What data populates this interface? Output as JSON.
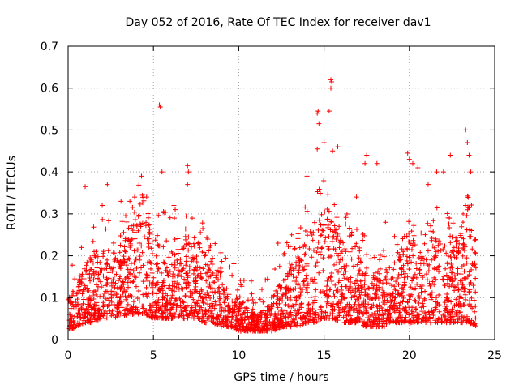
{
  "chart_data": {
    "type": "scatter",
    "title": "Day 052 of 2016, Rate Of TEC Index for receiver dav1",
    "xlabel": "GPS time / hours",
    "ylabel": "ROTI / TECUs",
    "xlim": [
      0,
      25
    ],
    "ylim": [
      0,
      0.7
    ],
    "xticks": [
      "0",
      "5",
      "10",
      "15",
      "20",
      "25"
    ],
    "xtick_values": [
      0,
      5,
      10,
      15,
      20,
      25
    ],
    "yticks": [
      "0",
      "0.1",
      "0.2",
      "0.3",
      "0.4",
      "0.5",
      "0.6",
      "0.7"
    ],
    "ytick_values": [
      0,
      0.1,
      0.2,
      0.3,
      0.4,
      0.5,
      0.6,
      0.7
    ],
    "grid": true,
    "marker": "+",
    "series_color": "#ff0000",
    "data_range_hours": [
      0,
      23.9
    ],
    "envelope": {
      "hours": [
        0,
        0.5,
        1,
        1.5,
        2,
        2.5,
        3,
        3.5,
        4,
        4.5,
        5,
        5.5,
        6,
        6.5,
        7,
        7.5,
        8,
        8.5,
        9,
        9.5,
        10,
        10.5,
        11,
        11.5,
        12,
        12.5,
        13,
        13.5,
        14,
        14.5,
        15,
        15.5,
        16,
        16.5,
        17,
        17.5,
        18,
        18.5,
        19,
        19.5,
        20,
        20.5,
        21,
        21.5,
        22,
        22.5,
        23,
        23.5,
        23.9
      ],
      "typical_max": [
        0.1,
        0.13,
        0.18,
        0.2,
        0.24,
        0.22,
        0.2,
        0.26,
        0.3,
        0.3,
        0.28,
        0.24,
        0.24,
        0.25,
        0.28,
        0.24,
        0.22,
        0.18,
        0.15,
        0.12,
        0.1,
        0.08,
        0.06,
        0.07,
        0.1,
        0.15,
        0.18,
        0.2,
        0.26,
        0.28,
        0.32,
        0.3,
        0.26,
        0.22,
        0.2,
        0.17,
        0.15,
        0.16,
        0.18,
        0.2,
        0.24,
        0.22,
        0.2,
        0.26,
        0.24,
        0.22,
        0.28,
        0.3,
        0.2
      ],
      "typical_min": [
        0.02,
        0.03,
        0.04,
        0.04,
        0.05,
        0.05,
        0.05,
        0.06,
        0.06,
        0.06,
        0.05,
        0.05,
        0.05,
        0.05,
        0.05,
        0.05,
        0.04,
        0.04,
        0.03,
        0.03,
        0.02,
        0.02,
        0.02,
        0.02,
        0.02,
        0.03,
        0.03,
        0.03,
        0.04,
        0.04,
        0.05,
        0.05,
        0.04,
        0.04,
        0.04,
        0.03,
        0.03,
        0.03,
        0.04,
        0.04,
        0.04,
        0.04,
        0.04,
        0.04,
        0.04,
        0.04,
        0.04,
        0.04,
        0.03
      ]
    },
    "notable_points": [
      {
        "x": 1.0,
        "y": 0.365
      },
      {
        "x": 2.3,
        "y": 0.37
      },
      {
        "x": 4.3,
        "y": 0.39
      },
      {
        "x": 5.35,
        "y": 0.56
      },
      {
        "x": 5.4,
        "y": 0.555
      },
      {
        "x": 5.5,
        "y": 0.4
      },
      {
        "x": 7.0,
        "y": 0.415
      },
      {
        "x": 7.05,
        "y": 0.4
      },
      {
        "x": 7.0,
        "y": 0.37
      },
      {
        "x": 14.0,
        "y": 0.39
      },
      {
        "x": 14.6,
        "y": 0.54
      },
      {
        "x": 14.65,
        "y": 0.545
      },
      {
        "x": 14.7,
        "y": 0.515
      },
      {
        "x": 14.6,
        "y": 0.455
      },
      {
        "x": 15.0,
        "y": 0.47
      },
      {
        "x": 15.4,
        "y": 0.62
      },
      {
        "x": 15.45,
        "y": 0.615
      },
      {
        "x": 15.4,
        "y": 0.6
      },
      {
        "x": 15.3,
        "y": 0.545
      },
      {
        "x": 15.5,
        "y": 0.45
      },
      {
        "x": 15.8,
        "y": 0.46
      },
      {
        "x": 17.5,
        "y": 0.44
      },
      {
        "x": 17.4,
        "y": 0.42
      },
      {
        "x": 18.1,
        "y": 0.42
      },
      {
        "x": 19.9,
        "y": 0.445
      },
      {
        "x": 20.0,
        "y": 0.43
      },
      {
        "x": 20.2,
        "y": 0.42
      },
      {
        "x": 20.5,
        "y": 0.41
      },
      {
        "x": 21.6,
        "y": 0.4
      },
      {
        "x": 22.0,
        "y": 0.4
      },
      {
        "x": 22.4,
        "y": 0.44
      },
      {
        "x": 23.3,
        "y": 0.5
      },
      {
        "x": 23.4,
        "y": 0.47
      },
      {
        "x": 23.5,
        "y": 0.44
      },
      {
        "x": 23.6,
        "y": 0.4
      },
      {
        "x": 3.1,
        "y": 0.33
      },
      {
        "x": 3.9,
        "y": 0.34
      },
      {
        "x": 4.6,
        "y": 0.34
      },
      {
        "x": 6.2,
        "y": 0.32
      },
      {
        "x": 2.0,
        "y": 0.32
      },
      {
        "x": 12.3,
        "y": 0.23
      },
      {
        "x": 13.1,
        "y": 0.25
      },
      {
        "x": 16.9,
        "y": 0.34
      },
      {
        "x": 18.6,
        "y": 0.28
      },
      {
        "x": 21.1,
        "y": 0.37
      }
    ]
  }
}
